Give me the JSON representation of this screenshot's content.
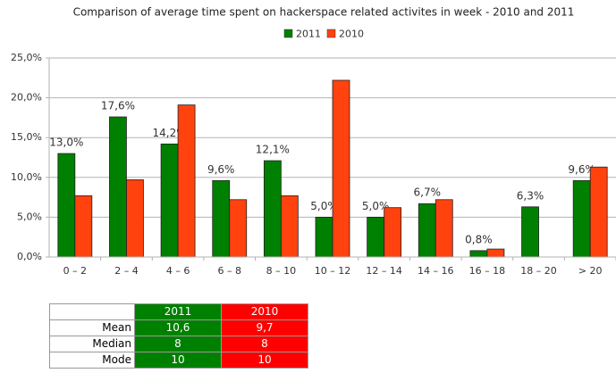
{
  "chart_data": {
    "type": "bar",
    "title": "Comparison of average time spent on hackerspace related activites in week - 2010 and 2011",
    "categories": [
      "0 – 2",
      "2 – 4",
      "4 – 6",
      "6 – 8",
      "8 – 10",
      "10 – 12",
      "12 – 14",
      "14 – 16",
      "16 – 18",
      "18 – 20",
      "> 20"
    ],
    "series": [
      {
        "name": "2011",
        "color": "#008000",
        "values": [
          13.0,
          17.6,
          14.2,
          9.6,
          12.1,
          5.0,
          5.0,
          6.7,
          0.8,
          6.3,
          9.6
        ],
        "value_labels": [
          "13,0%",
          "17,6%",
          "14,2%",
          "9,6%",
          "12,1%",
          "5,0%",
          "5,0%",
          "6,7%",
          "0,8%",
          "6,3%",
          "9,6%"
        ]
      },
      {
        "name": "2010",
        "color": "#ff420e",
        "values": [
          7.7,
          9.7,
          19.1,
          7.2,
          7.7,
          22.2,
          6.2,
          7.2,
          1.0,
          null,
          11.3
        ]
      }
    ],
    "ylim": [
      0,
      25
    ],
    "yticks": [
      {
        "value": 0,
        "label": "0,0%"
      },
      {
        "value": 5,
        "label": "5,0%"
      },
      {
        "value": 10,
        "label": "10,0%"
      },
      {
        "value": 15,
        "label": "15,0%"
      },
      {
        "value": 20,
        "label": "20,0%"
      },
      {
        "value": 25,
        "label": "25,0%"
      }
    ],
    "grid": true,
    "legend": "top"
  },
  "table": {
    "header": [
      "2011",
      "2010"
    ],
    "rows": [
      [
        "Mean",
        "10,6",
        "9,7"
      ],
      [
        "Median",
        "8",
        "8"
      ],
      [
        "Mode",
        "10",
        "10"
      ]
    ]
  }
}
